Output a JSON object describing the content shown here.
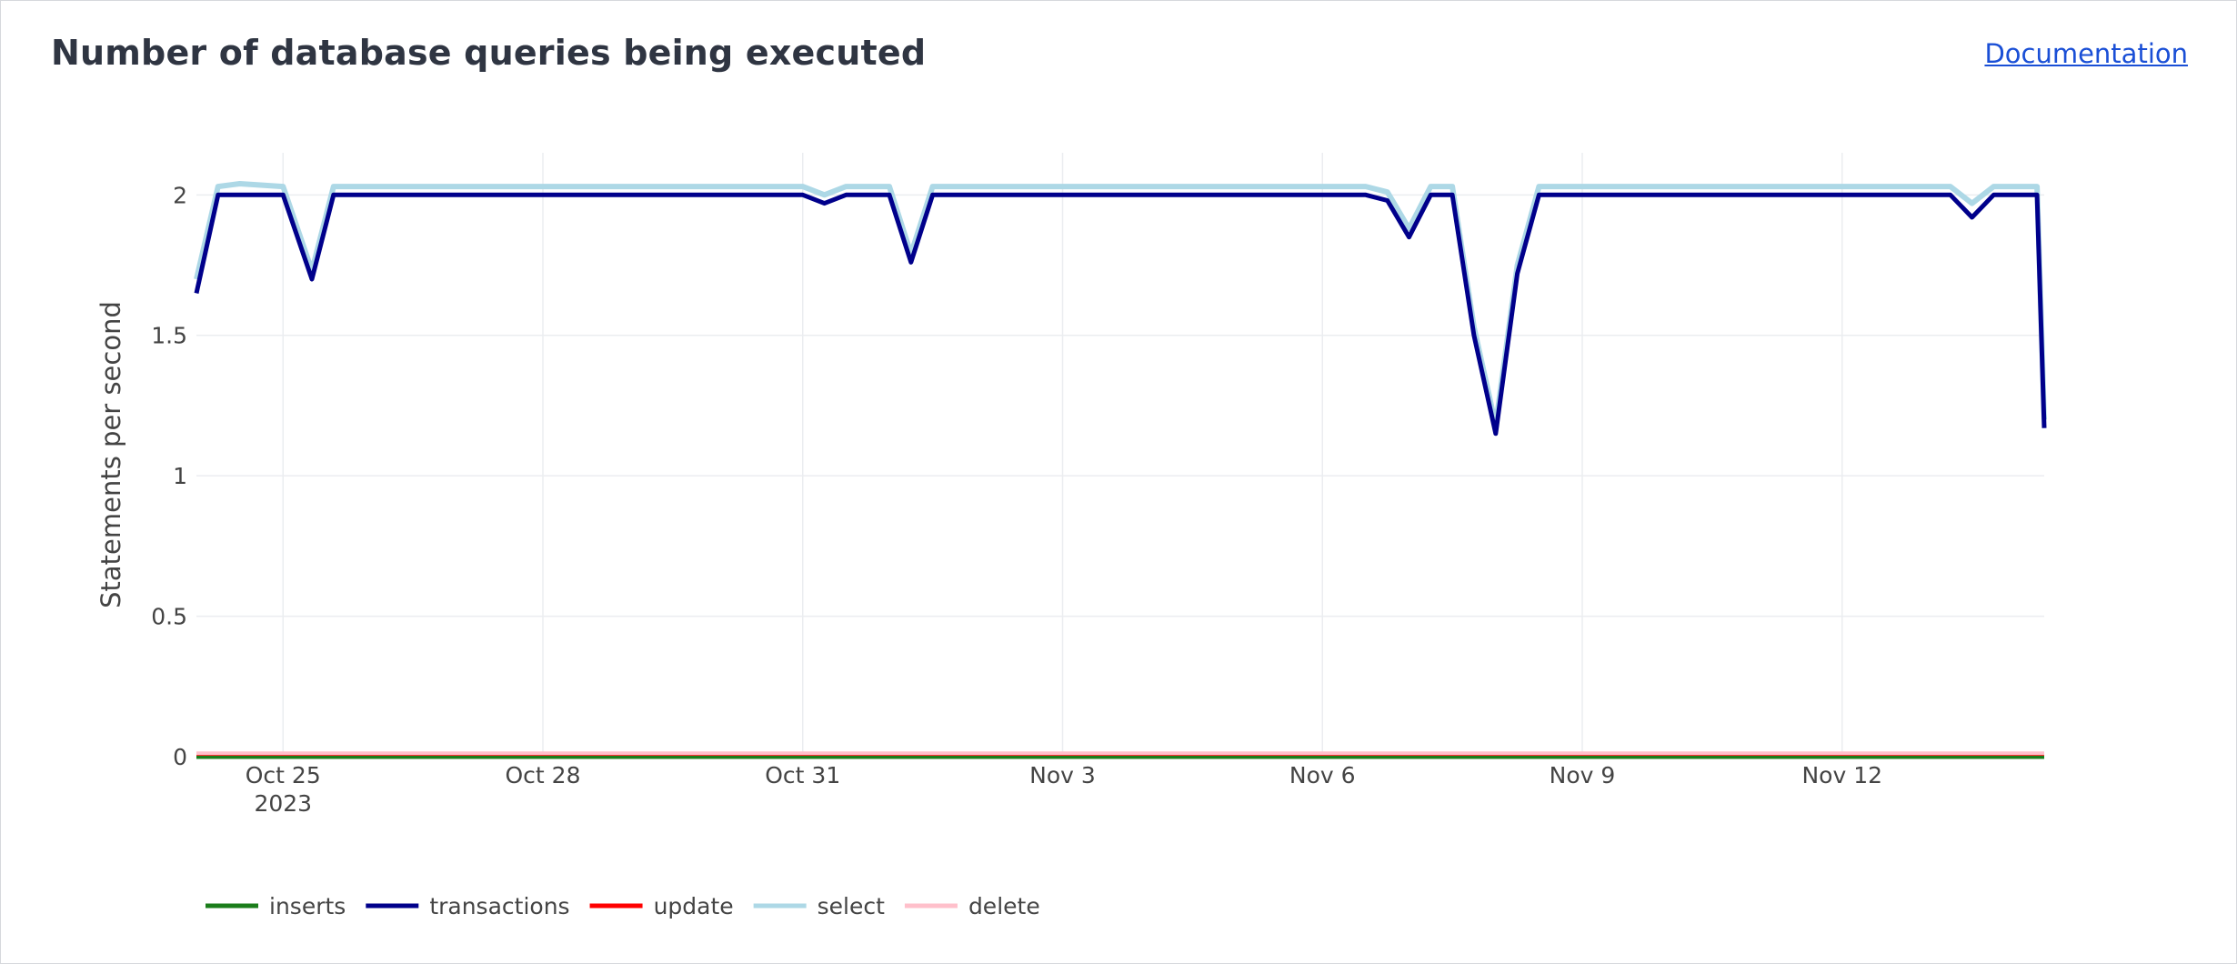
{
  "header": {
    "title": "Number of database queries being executed",
    "doc_link": "Documentation"
  },
  "chart_data": {
    "type": "line",
    "xlabel": "",
    "ylabel": "Statements per second",
    "ylim": [
      0,
      2.15
    ],
    "yticks": [
      0,
      0.5,
      1,
      1.5,
      2
    ],
    "ytick_labels": [
      "0",
      "0.5",
      "1",
      "1.5",
      "2"
    ],
    "xlim": [
      "2023-10-24T00:00",
      "2023-11-14T08:00"
    ],
    "xticks": [
      {
        "date": "2023-10-25T00:00",
        "label": "Oct 25",
        "sublabel": "2023"
      },
      {
        "date": "2023-10-28T00:00",
        "label": "Oct 28",
        "sublabel": ""
      },
      {
        "date": "2023-10-31T00:00",
        "label": "Oct 31",
        "sublabel": ""
      },
      {
        "date": "2023-11-03T00:00",
        "label": "Nov 3",
        "sublabel": ""
      },
      {
        "date": "2023-11-06T00:00",
        "label": "Nov 6",
        "sublabel": ""
      },
      {
        "date": "2023-11-09T00:00",
        "label": "Nov 9",
        "sublabel": ""
      },
      {
        "date": "2023-11-12T00:00",
        "label": "Nov 12",
        "sublabel": ""
      }
    ],
    "grid": true,
    "legend_position": "bottom-left",
    "series": [
      {
        "name": "inserts",
        "color": "#1a7d1a",
        "width": 5,
        "points": [
          [
            "2023-10-24T00:00",
            0
          ],
          [
            "2023-11-14T08:00",
            0
          ]
        ]
      },
      {
        "name": "transactions",
        "color": "#00008b",
        "width": 5,
        "points": [
          [
            "2023-10-24T00:00",
            1.65
          ],
          [
            "2023-10-24T06:00",
            2.0
          ],
          [
            "2023-10-24T12:00",
            2.0
          ],
          [
            "2023-10-25T00:00",
            2.0
          ],
          [
            "2023-10-25T08:00",
            1.7
          ],
          [
            "2023-10-25T14:00",
            2.0
          ],
          [
            "2023-10-31T00:00",
            2.0
          ],
          [
            "2023-10-31T06:00",
            1.97
          ],
          [
            "2023-10-31T12:00",
            2.0
          ],
          [
            "2023-11-01T00:00",
            2.0
          ],
          [
            "2023-11-01T06:00",
            1.76
          ],
          [
            "2023-11-01T12:00",
            2.0
          ],
          [
            "2023-11-06T12:00",
            2.0
          ],
          [
            "2023-11-06T18:00",
            1.98
          ],
          [
            "2023-11-07T00:00",
            1.85
          ],
          [
            "2023-11-07T06:00",
            2.0
          ],
          [
            "2023-11-07T12:00",
            2.0
          ],
          [
            "2023-11-07T18:00",
            1.5
          ],
          [
            "2023-11-08T00:00",
            1.15
          ],
          [
            "2023-11-08T06:00",
            1.72
          ],
          [
            "2023-11-08T12:00",
            2.0
          ],
          [
            "2023-11-13T06:00",
            2.0
          ],
          [
            "2023-11-13T12:00",
            1.92
          ],
          [
            "2023-11-13T18:00",
            2.0
          ],
          [
            "2023-11-14T06:00",
            2.0
          ],
          [
            "2023-11-14T08:00",
            1.17
          ]
        ]
      },
      {
        "name": "update",
        "color": "#ff0000",
        "width": 3,
        "points": [
          [
            "2023-10-24T00:00",
            0.008
          ],
          [
            "2023-11-14T08:00",
            0.008
          ]
        ]
      },
      {
        "name": "select",
        "color": "#add8e6",
        "width": 6,
        "points": [
          [
            "2023-10-24T00:00",
            1.7
          ],
          [
            "2023-10-24T06:00",
            2.03
          ],
          [
            "2023-10-24T12:00",
            2.04
          ],
          [
            "2023-10-25T00:00",
            2.03
          ],
          [
            "2023-10-25T08:00",
            1.73
          ],
          [
            "2023-10-25T14:00",
            2.03
          ],
          [
            "2023-10-31T00:00",
            2.03
          ],
          [
            "2023-10-31T06:00",
            2.0
          ],
          [
            "2023-10-31T12:00",
            2.03
          ],
          [
            "2023-11-01T00:00",
            2.03
          ],
          [
            "2023-11-01T06:00",
            1.79
          ],
          [
            "2023-11-01T12:00",
            2.03
          ],
          [
            "2023-11-06T12:00",
            2.03
          ],
          [
            "2023-11-06T18:00",
            2.01
          ],
          [
            "2023-11-07T00:00",
            1.88
          ],
          [
            "2023-11-07T06:00",
            2.03
          ],
          [
            "2023-11-07T12:00",
            2.03
          ],
          [
            "2023-11-07T18:00",
            1.53
          ],
          [
            "2023-11-08T00:00",
            1.18
          ],
          [
            "2023-11-08T06:00",
            1.75
          ],
          [
            "2023-11-08T12:00",
            2.03
          ],
          [
            "2023-11-13T06:00",
            2.03
          ],
          [
            "2023-11-13T12:00",
            1.97
          ],
          [
            "2023-11-13T18:00",
            2.03
          ],
          [
            "2023-11-14T06:00",
            2.03
          ],
          [
            "2023-11-14T08:00",
            1.2
          ]
        ]
      },
      {
        "name": "delete",
        "color": "#ffc0cb",
        "width": 4,
        "points": [
          [
            "2023-10-24T00:00",
            0.012
          ],
          [
            "2023-11-14T08:00",
            0.012
          ]
        ]
      }
    ]
  }
}
